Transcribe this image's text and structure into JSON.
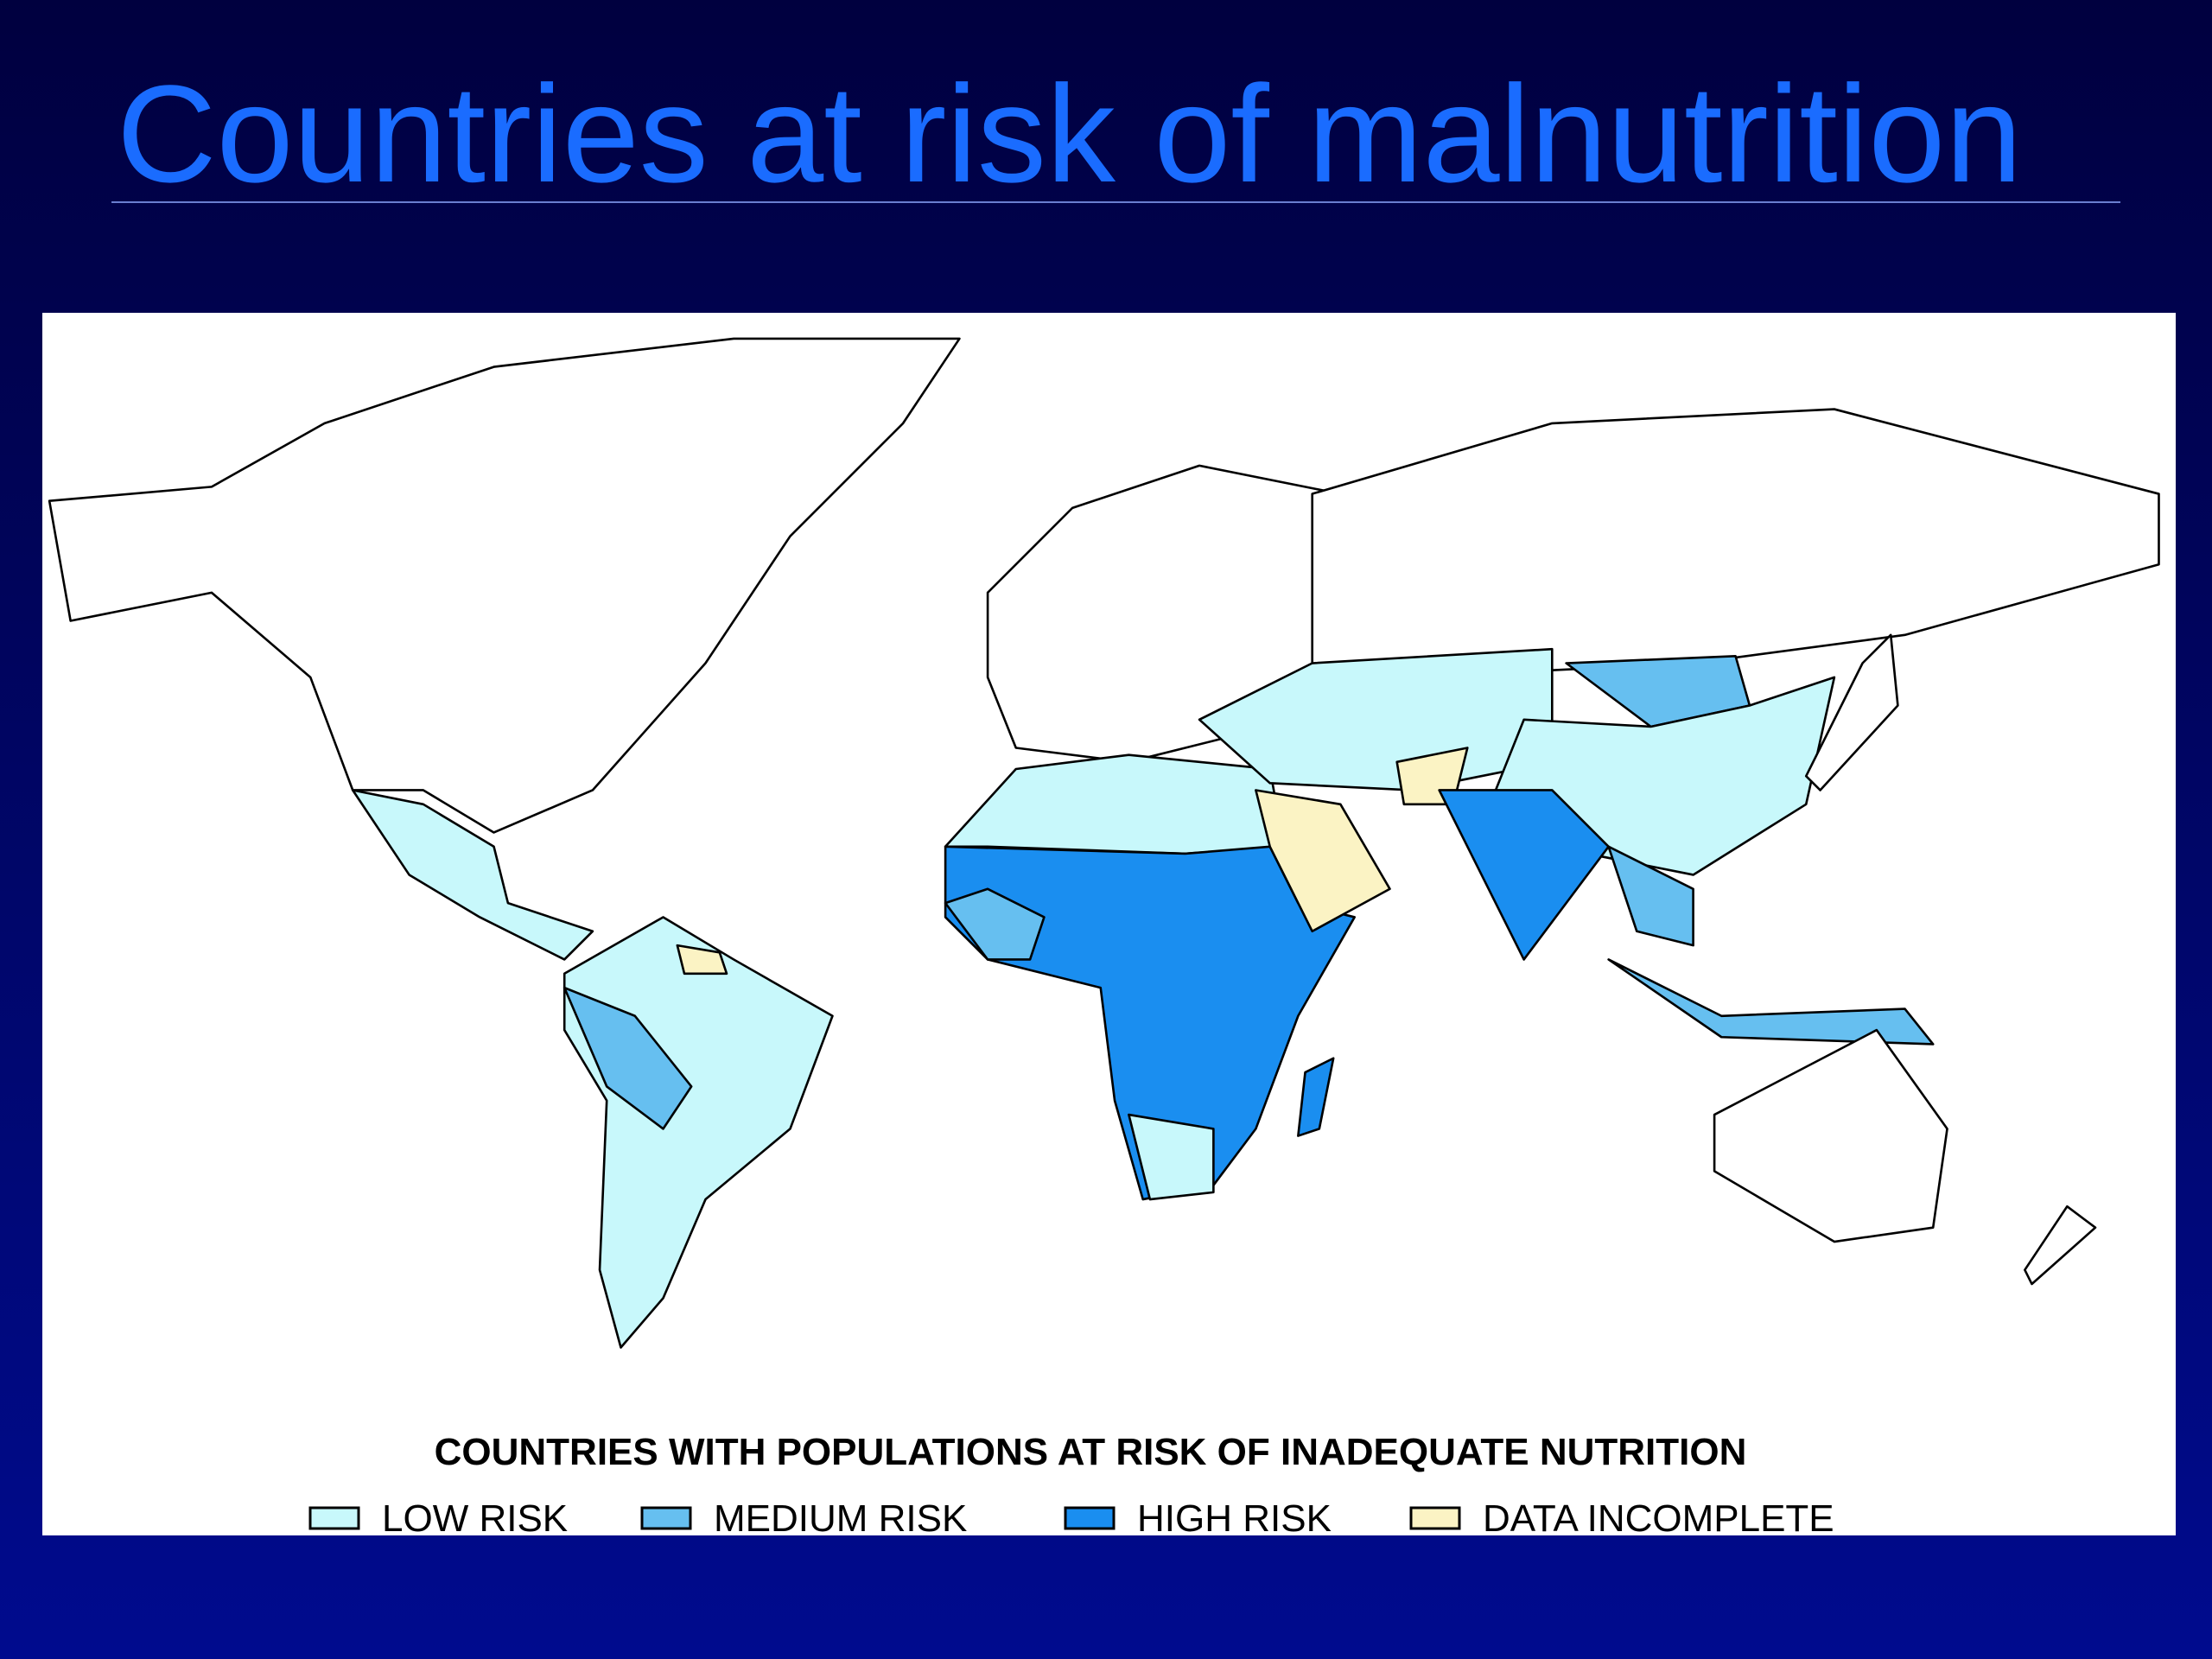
{
  "slide": {
    "title": "Countries at risk of malnutrition"
  },
  "map": {
    "caption": "COUNTRIES WITH POPULATIONS AT RISK OF INADEQUATE NUTRITION",
    "legend": [
      {
        "label": "LOW RISK",
        "color": "#c8f8fb"
      },
      {
        "label": "MEDIUM RISK",
        "color": "#66bff0"
      },
      {
        "label": "HIGH RISK",
        "color": "#1a8ef0"
      },
      {
        "label": "DATA INCOMPLETE",
        "color": "#fbf3c4"
      }
    ]
  }
}
